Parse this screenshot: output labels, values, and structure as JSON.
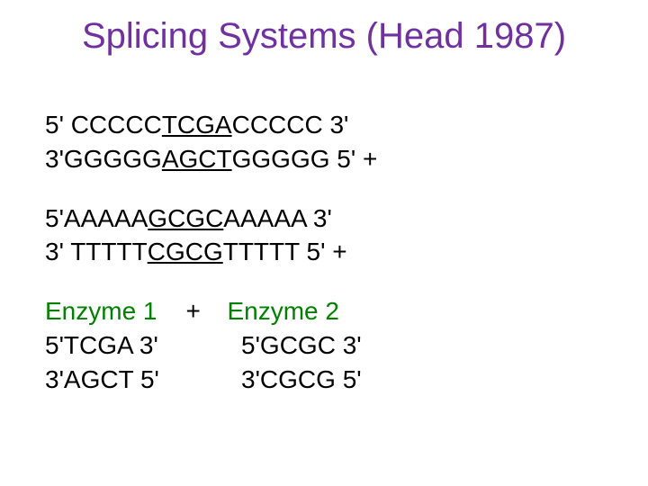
{
  "title": "Splicing Systems (Head 1987)",
  "colors": {
    "title": "#7030a0",
    "body_text": "#000000",
    "accent": "#008000",
    "background": "#ffffff"
  },
  "typography": {
    "title_fontsize": 40,
    "body_fontsize": 28,
    "font_family": "Arial"
  },
  "seq1": {
    "line1": {
      "prefix": "5' CCCCC",
      "mid": "TCGA",
      "suffix": "CCCCC 3'"
    },
    "line2": {
      "prefix": "3'GGGGG",
      "mid": "AGCT",
      "suffix": "GGGGG 5' +"
    }
  },
  "seq2": {
    "line1": {
      "prefix": "5'AAAAA",
      "mid": "GCGC",
      "suffix": "AAAAA 3'"
    },
    "line2": {
      "prefix": "3' TTTTT",
      "mid": "CGCG",
      "suffix": "TTTTT 5' +"
    }
  },
  "enzymes": {
    "plus": "+",
    "enzyme1": {
      "label": "Enzyme 1",
      "line1": "5'TCGA 3'",
      "line2": "3'AGCT 5'"
    },
    "enzyme2": {
      "label": "Enzyme 2",
      "line1": "  5'GCGC 3'",
      "line2": "  3'CGCG 5'"
    }
  }
}
